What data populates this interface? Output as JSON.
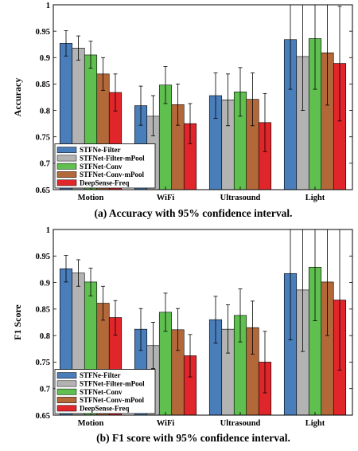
{
  "chart_data": [
    {
      "type": "bar",
      "caption": "(a) Accuracy with 95% confidence interval.",
      "ylabel": "Accuracy",
      "ylim": [
        0.65,
        1
      ],
      "yticks": [
        "0.65",
        "0.7",
        "0.75",
        "0.8",
        "0.85",
        "0.9",
        "0.95",
        "1"
      ],
      "categories": [
        "Motion",
        "WiFi",
        "Ultrasound",
        "Light"
      ],
      "legend_position": "bottom-left",
      "series": [
        {
          "name": "STFNe-Filter",
          "color": "#4a7ebb",
          "values": [
            0.927,
            0.809,
            0.828,
            0.934
          ],
          "err_low": [
            0.903,
            0.772,
            0.785,
            0.84
          ],
          "err_high": [
            0.951,
            0.846,
            0.871,
            1.0
          ]
        },
        {
          "name": "STFNet-Filter-mPool",
          "color": "#b3b3b3",
          "values": [
            0.918,
            0.789,
            0.82,
            0.902
          ],
          "err_low": [
            0.895,
            0.752,
            0.771,
            0.8
          ],
          "err_high": [
            0.941,
            0.828,
            0.869,
            1.0
          ]
        },
        {
          "name": "STFNet-Conv",
          "color": "#5fbf4f",
          "values": [
            0.905,
            0.848,
            0.835,
            0.936
          ],
          "err_low": [
            0.88,
            0.813,
            0.789,
            0.84
          ],
          "err_high": [
            0.931,
            0.883,
            0.881,
            1.0
          ]
        },
        {
          "name": "STFNet-Conv-mPool",
          "color": "#b3683a",
          "values": [
            0.869,
            0.811,
            0.821,
            0.909
          ],
          "err_low": [
            0.838,
            0.772,
            0.771,
            0.81
          ],
          "err_high": [
            0.9,
            0.85,
            0.871,
            1.0
          ]
        },
        {
          "name": "DeepSense-Freq",
          "color": "#e0262a",
          "values": [
            0.834,
            0.775,
            0.777,
            0.889
          ],
          "err_low": [
            0.799,
            0.737,
            0.722,
            0.78
          ],
          "err_high": [
            0.869,
            0.813,
            0.832,
            0.997
          ]
        }
      ]
    },
    {
      "type": "bar",
      "caption": "(b) F1 score with 95% confidence interval.",
      "ylabel": "F1 Score",
      "ylim": [
        0.65,
        1
      ],
      "yticks": [
        "0.65",
        "0.7",
        "0.75",
        "0.8",
        "0.85",
        "0.9",
        "0.95",
        "1"
      ],
      "categories": [
        "Motion",
        "WiFi",
        "Ultrasound",
        "Light"
      ],
      "legend_position": "bottom-left",
      "series": [
        {
          "name": "STFNe-Filter",
          "color": "#4a7ebb",
          "values": [
            0.926,
            0.812,
            0.83,
            0.917
          ],
          "err_low": [
            0.901,
            0.772,
            0.786,
            0.792
          ],
          "err_high": [
            0.951,
            0.851,
            0.874,
            1.0
          ]
        },
        {
          "name": "STFNet-Filter-mPool",
          "color": "#b3b3b3",
          "values": [
            0.918,
            0.781,
            0.812,
            0.886
          ],
          "err_low": [
            0.893,
            0.738,
            0.767,
            0.77
          ],
          "err_high": [
            0.943,
            0.825,
            0.858,
            1.0
          ]
        },
        {
          "name": "STFNet-Conv",
          "color": "#5fbf4f",
          "values": [
            0.901,
            0.844,
            0.838,
            0.929
          ],
          "err_low": [
            0.875,
            0.808,
            0.788,
            0.828
          ],
          "err_high": [
            0.927,
            0.88,
            0.888,
            1.0
          ]
        },
        {
          "name": "STFNet-Conv-mPool",
          "color": "#b3683a",
          "values": [
            0.861,
            0.811,
            0.815,
            0.901
          ],
          "err_low": [
            0.829,
            0.772,
            0.765,
            0.8
          ],
          "err_high": [
            0.893,
            0.851,
            0.865,
            1.0
          ]
        },
        {
          "name": "DeepSense-Freq",
          "color": "#e0262a",
          "values": [
            0.834,
            0.762,
            0.75,
            0.867
          ],
          "err_low": [
            0.801,
            0.722,
            0.692,
            0.735
          ],
          "err_high": [
            0.866,
            0.802,
            0.808,
            1.0
          ]
        }
      ]
    }
  ]
}
